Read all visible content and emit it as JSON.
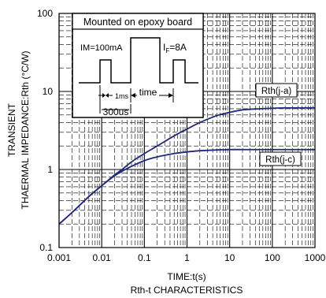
{
  "chart_data": {
    "type": "line",
    "title": "Rth-t CHARACTERISTICS",
    "xlabel": "TIME:t(s)",
    "ylabel_line1": "TRANSIENT",
    "ylabel_line2": "THAERMAL IMPEDANCE:Rth (°C/W)",
    "x_scale": "log",
    "y_scale": "log",
    "xlim": [
      0.001,
      1000
    ],
    "ylim": [
      0.1,
      100
    ],
    "x_ticks": [
      "0.001",
      "0.01",
      "0.1",
      "1",
      "10",
      "100",
      "1000"
    ],
    "y_ticks": [
      "100",
      "10",
      "1",
      "0.1"
    ],
    "grid": true,
    "line_color": "#1f2a7a",
    "series": [
      {
        "name": "Rth(j-a)",
        "x": [
          0.001,
          0.002,
          0.005,
          0.01,
          0.02,
          0.03,
          0.05,
          0.1,
          0.2,
          0.5,
          1,
          2,
          5,
          10,
          20,
          50,
          100,
          200,
          500,
          1000
        ],
        "values": [
          0.2,
          0.28,
          0.45,
          0.62,
          0.85,
          1.0,
          1.25,
          1.6,
          2.0,
          2.7,
          3.3,
          4.0,
          4.9,
          5.4,
          5.8,
          6.0,
          6.1,
          6.15,
          6.15,
          6.15
        ]
      },
      {
        "name": "Rth(j-c)",
        "x": [
          0.001,
          0.002,
          0.005,
          0.01,
          0.02,
          0.03,
          0.05,
          0.1,
          0.2,
          0.5,
          1,
          2,
          5,
          10,
          20,
          50,
          100,
          200,
          500,
          1000
        ],
        "values": [
          0.2,
          0.28,
          0.45,
          0.62,
          0.83,
          0.95,
          1.1,
          1.3,
          1.45,
          1.6,
          1.68,
          1.74,
          1.78,
          1.8,
          1.8,
          1.8,
          1.8,
          1.8,
          1.8,
          1.8
        ]
      }
    ],
    "inset": {
      "title": "Mounted on epoxy board",
      "im_label": "IM=100mA",
      "if_label_main": "I",
      "if_label_sub": "F",
      "if_label_rest": "=8A",
      "label_1ms": "1ms",
      "label_time": "time",
      "label_300us": "300us"
    }
  }
}
